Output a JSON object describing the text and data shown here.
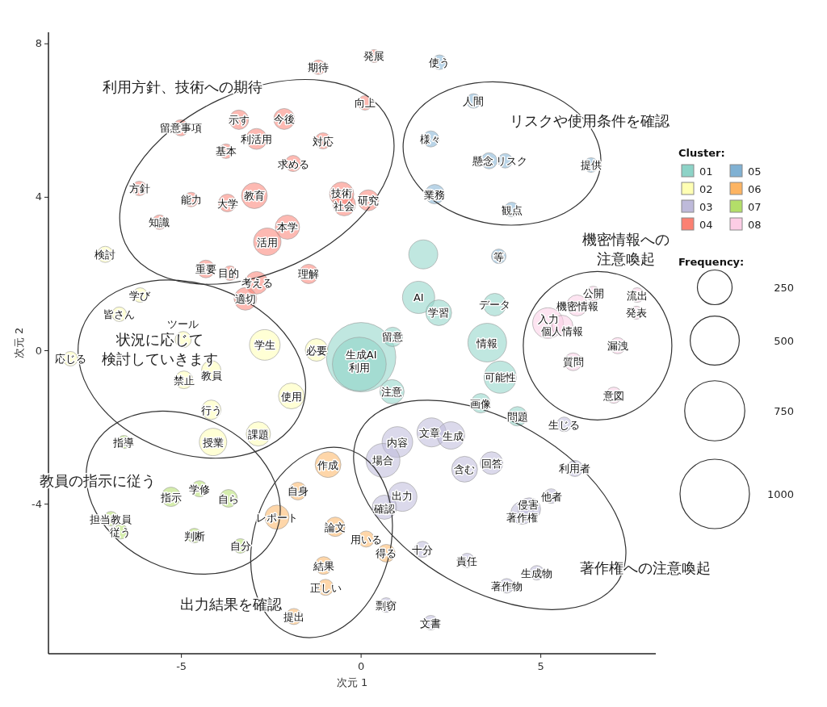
{
  "chart_data": {
    "type": "bubble",
    "xlabel": "次元 1",
    "ylabel": "次元 2",
    "legend_title": "Cluster:",
    "legend": "right",
    "xlim": [
      -8.7,
      8.2
    ],
    "ylim": [
      -7.9,
      8.3
    ],
    "xticks": [
      -5,
      0,
      5
    ],
    "yticks": [
      -4,
      0,
      4,
      8
    ],
    "size_legend": [
      250,
      500,
      750,
      1000
    ],
    "series": [
      {
        "name": "01",
        "color": "#8dd3c7",
        "x": [
          0.0,
          -0.05,
          0.88,
          0.86,
          1.73,
          1.6,
          2.16,
          3.72,
          3.51,
          3.87,
          3.33,
          4.35
        ],
        "values": [
          -0.17,
          -0.35,
          0.36,
          -1.07,
          2.51,
          1.39,
          0.99,
          1.2,
          0.21,
          -0.69,
          -1.37,
          -1.71
        ],
        "sizes": [
          1000,
          600,
          78,
          122,
          175,
          216,
          138,
          106,
          311,
          216,
          78,
          78
        ]
      },
      {
        "name": "02",
        "color": "#ffffb3",
        "x": [
          -7.12,
          -6.15,
          -6.73,
          -8.09,
          -4.95,
          -4.17,
          -4.93,
          -4.17,
          -4.12,
          -2.86,
          -1.94,
          -2.68,
          -1.24
        ],
        "values": [
          2.51,
          1.45,
          0.95,
          -0.21,
          0.29,
          -0.51,
          -0.76,
          -1.54,
          -2.38,
          -2.17,
          -1.18,
          0.15,
          0.02
        ],
        "sizes": [
          54,
          44,
          44,
          44,
          54,
          78,
          65,
          78,
          156,
          122,
          138,
          195,
          106
        ]
      },
      {
        "name": "03",
        "color": "#bebada",
        "x": [
          5.65,
          1.96,
          2.5,
          1.01,
          0.61,
          2.88,
          3.63,
          5.95,
          1.15,
          0.65,
          4.48,
          4.68,
          5.29,
          1.71,
          2.95,
          4.89,
          4.05,
          0.7,
          1.94
        ],
        "values": [
          -1.92,
          -2.13,
          -2.21,
          -2.38,
          -2.86,
          -3.09,
          -2.93,
          -3.07,
          -3.81,
          -4.08,
          -4.23,
          -4.13,
          -3.79,
          -5.18,
          -5.47,
          -5.79,
          -6.13,
          -6.63,
          -7.09
        ],
        "sizes": [
          44,
          175,
          156,
          195,
          238,
          138,
          106,
          54,
          175,
          122,
          106,
          106,
          44,
          54,
          44,
          44,
          44,
          44,
          44
        ]
      },
      {
        "name": "04",
        "color": "#fb8072",
        "x": [
          -1.19,
          0.36,
          0.11,
          -3.4,
          -2.14,
          -2.91,
          -5.02,
          -1.06,
          -3.76,
          -1.89,
          -6.17,
          -4.73,
          -3.72,
          -2.97,
          -0.54,
          -0.47,
          0.2,
          -5.61,
          -2.05,
          -2.61,
          -4.32,
          -3.65,
          -2.91,
          -1.46,
          -3.22
        ],
        "values": [
          7.39,
          7.68,
          6.46,
          6.02,
          6.04,
          5.52,
          5.81,
          5.47,
          5.2,
          4.88,
          4.23,
          3.94,
          3.85,
          4.04,
          4.08,
          3.81,
          3.92,
          3.35,
          3.22,
          2.84,
          2.13,
          2.02,
          1.77,
          2.0,
          1.35
        ],
        "sizes": [
          44,
          35,
          44,
          78,
          91,
          91,
          54,
          54,
          44,
          54,
          44,
          44,
          65,
          138,
          122,
          106,
          91,
          44,
          122,
          156,
          65,
          44,
          106,
          78,
          106
        ]
      },
      {
        "name": "05",
        "color": "#80b1d3",
        "x": [
          2.18,
          3.13,
          1.94,
          3.56,
          4.01,
          6.4,
          2.05,
          4.19,
          3.83
        ],
        "values": [
          7.52,
          6.51,
          5.52,
          4.95,
          4.95,
          4.84,
          4.08,
          3.68,
          2.46
        ],
        "sizes": [
          44,
          44,
          54,
          54,
          44,
          44,
          78,
          44,
          44
        ]
      },
      {
        "name": "06",
        "color": "#fdb462",
        "x": [
          -0.92,
          -1.76,
          -2.34,
          -0.72,
          0.14,
          0.7,
          -1.04,
          -0.99,
          -1.87
        ],
        "values": [
          -2.97,
          -3.66,
          -4.34,
          -4.59,
          -4.91,
          -5.28,
          -5.6,
          -6.17,
          -6.93
        ],
        "sizes": [
          138,
          65,
          122,
          78,
          54,
          65,
          65,
          54,
          54
        ]
      },
      {
        "name": "07",
        "color": "#b3de69",
        "x": [
          -6.6,
          -5.29,
          -4.5,
          -3.69,
          -6.96,
          -6.69,
          -4.64,
          -3.36
        ],
        "values": [
          -2.38,
          -3.81,
          -3.6,
          -3.85,
          -4.38,
          -4.72,
          -4.82,
          -5.09
        ],
        "sizes": [
          35,
          78,
          54,
          65,
          44,
          44,
          44,
          44
        ]
      },
      {
        "name": "08",
        "color": "#fccde5",
        "x": [
          7.68,
          6.46,
          6.01,
          7.66,
          5.2,
          5.6,
          5.9,
          7.14,
          7.03
        ],
        "values": [
          1.45,
          1.49,
          1.18,
          0.99,
          0.72,
          0.65,
          -0.29,
          0.13,
          -1.16
        ],
        "sizes": [
          44,
          44,
          91,
          35,
          195,
          91,
          65,
          54,
          54
        ]
      }
    ],
    "annotations": [
      "利用方針、技術への期待",
      "リスクや使用条件を確認",
      "機密情報への注意喚起",
      "状況に応じて検討していきます",
      "教員の指示に従う",
      "出力結果を確認",
      "著作権への注意喚起",
      "Frequency:",
      {
        "text": "生成AI",
        "x": 0.0,
        "y": -0.17
      },
      {
        "text": "利用",
        "x": -0.05,
        "y": -0.35
      },
      {
        "text": "留意",
        "x": 0.88,
        "y": 0.36
      },
      {
        "text": "注意",
        "x": 0.86,
        "y": -1.07
      },
      {
        "text": "AI",
        "x": 1.6,
        "y": 1.39
      },
      {
        "text": "学習",
        "x": 2.16,
        "y": 0.99
      },
      {
        "text": "データ",
        "x": 3.72,
        "y": 1.2
      },
      {
        "text": "情報",
        "x": 3.51,
        "y": 0.21
      },
      {
        "text": "可能性",
        "x": 3.87,
        "y": -0.69
      },
      {
        "text": "画像",
        "x": 3.33,
        "y": -1.37
      },
      {
        "text": "問題",
        "x": 4.35,
        "y": -1.71
      },
      {
        "text": "検討",
        "x": -7.12,
        "y": 2.51
      },
      {
        "text": "学び",
        "x": -6.15,
        "y": 1.45
      },
      {
        "text": "皆さん",
        "x": -6.73,
        "y": 0.95
      },
      {
        "text": "応じる",
        "x": -8.09,
        "y": -0.21
      },
      {
        "text": "ツール",
        "x": -4.95,
        "y": 0.29
      },
      {
        "text": "教員",
        "x": -4.17,
        "y": -0.51
      },
      {
        "text": "禁止",
        "x": -4.93,
        "y": -0.76
      },
      {
        "text": "行う",
        "x": -4.17,
        "y": -1.54
      },
      {
        "text": "授業",
        "x": -4.12,
        "y": -2.38
      },
      {
        "text": "課題",
        "x": -2.86,
        "y": -2.17
      },
      {
        "text": "使用",
        "x": -1.94,
        "y": -1.18
      },
      {
        "text": "学生",
        "x": -2.68,
        "y": 0.15
      },
      {
        "text": "必要",
        "x": -1.24,
        "y": 0.02
      },
      {
        "text": "生じる",
        "x": 5.65,
        "y": -1.92
      },
      {
        "text": "文章",
        "x": 1.96,
        "y": -2.13
      },
      {
        "text": "生成",
        "x": 2.5,
        "y": -2.21
      },
      {
        "text": "内容",
        "x": 1.01,
        "y": -2.38
      },
      {
        "text": "場合",
        "x": 0.61,
        "y": -2.86
      },
      {
        "text": "含む",
        "x": 2.88,
        "y": -3.09
      },
      {
        "text": "回答",
        "x": 3.63,
        "y": -2.93
      },
      {
        "text": "利用者",
        "x": 5.95,
        "y": -3.07
      },
      {
        "text": "出力",
        "x": 1.15,
        "y": -3.81
      },
      {
        "text": "確認",
        "x": 0.65,
        "y": -4.08
      },
      {
        "text": "著作権",
        "x": 4.48,
        "y": -4.23
      },
      {
        "text": "侵害",
        "x": 4.68,
        "y": -4.13
      },
      {
        "text": "他者",
        "x": 5.29,
        "y": -3.79
      },
      {
        "text": "十分",
        "x": 1.71,
        "y": -5.18
      },
      {
        "text": "責任",
        "x": 2.95,
        "y": -5.47
      },
      {
        "text": "生成物",
        "x": 4.89,
        "y": -5.79
      },
      {
        "text": "著作物",
        "x": 4.05,
        "y": -6.13
      },
      {
        "text": "剽窃",
        "x": 0.7,
        "y": -6.63
      },
      {
        "text": "文書",
        "x": 1.94,
        "y": -7.09
      },
      {
        "text": "期待",
        "x": -1.19,
        "y": 7.39
      },
      {
        "text": "発展",
        "x": 0.36,
        "y": 7.68
      },
      {
        "text": "向上",
        "x": 0.11,
        "y": 6.46
      },
      {
        "text": "示す",
        "x": -3.4,
        "y": 6.02
      },
      {
        "text": "今後",
        "x": -2.14,
        "y": 6.04
      },
      {
        "text": "利活用",
        "x": -2.91,
        "y": 5.52
      },
      {
        "text": "留意事項",
        "x": -5.02,
        "y": 5.81
      },
      {
        "text": "対応",
        "x": -1.06,
        "y": 5.47
      },
      {
        "text": "基本",
        "x": -3.76,
        "y": 5.2
      },
      {
        "text": "求める",
        "x": -1.89,
        "y": 4.88
      },
      {
        "text": "方針",
        "x": -6.17,
        "y": 4.23
      },
      {
        "text": "能力",
        "x": -4.73,
        "y": 3.94
      },
      {
        "text": "大学",
        "x": -3.72,
        "y": 3.85
      },
      {
        "text": "教育",
        "x": -2.97,
        "y": 4.04
      },
      {
        "text": "技術",
        "x": -0.54,
        "y": 4.08
      },
      {
        "text": "社会",
        "x": -0.47,
        "y": 3.81
      },
      {
        "text": "研究",
        "x": 0.2,
        "y": 3.92
      },
      {
        "text": "知識",
        "x": -5.61,
        "y": 3.35
      },
      {
        "text": "本学",
        "x": -2.05,
        "y": 3.22
      },
      {
        "text": "活用",
        "x": -2.61,
        "y": 2.84
      },
      {
        "text": "重要",
        "x": -4.32,
        "y": 2.13
      },
      {
        "text": "目的",
        "x": -3.65,
        "y": 2.02
      },
      {
        "text": "考える",
        "x": -2.91,
        "y": 1.77
      },
      {
        "text": "理解",
        "x": -1.46,
        "y": 2.0
      },
      {
        "text": "適切",
        "x": -3.22,
        "y": 1.35
      },
      {
        "text": "使う",
        "x": 2.18,
        "y": 7.52
      },
      {
        "text": "人間",
        "x": 3.13,
        "y": 6.51
      },
      {
        "text": "様々",
        "x": 1.94,
        "y": 5.52
      },
      {
        "text": "懸念",
        "x": 3.56,
        "y": 4.95
      },
      {
        "text": "リスク",
        "x": 4.01,
        "y": 4.95
      },
      {
        "text": "提供",
        "x": 6.4,
        "y": 4.84
      },
      {
        "text": "業務",
        "x": 2.05,
        "y": 4.08
      },
      {
        "text": "観点",
        "x": 4.19,
        "y": 3.68
      },
      {
        "text": "等",
        "x": 3.83,
        "y": 2.46
      },
      {
        "text": "作成",
        "x": -0.92,
        "y": -2.97
      },
      {
        "text": "自身",
        "x": -1.76,
        "y": -3.66
      },
      {
        "text": "レポート",
        "x": -2.34,
        "y": -4.34
      },
      {
        "text": "論文",
        "x": -0.72,
        "y": -4.59
      },
      {
        "text": "用いる",
        "x": 0.14,
        "y": -4.91
      },
      {
        "text": "得る",
        "x": 0.7,
        "y": -5.28
      },
      {
        "text": "結果",
        "x": -1.04,
        "y": -5.6
      },
      {
        "text": "正しい",
        "x": -0.99,
        "y": -6.17
      },
      {
        "text": "提出",
        "x": -1.87,
        "y": -6.93
      },
      {
        "text": "指導",
        "x": -6.6,
        "y": -2.38
      },
      {
        "text": "指示",
        "x": -5.29,
        "y": -3.81
      },
      {
        "text": "学修",
        "x": -4.5,
        "y": -3.6
      },
      {
        "text": "自ら",
        "x": -3.69,
        "y": -3.85
      },
      {
        "text": "担当教員",
        "x": -6.96,
        "y": -4.38
      },
      {
        "text": "従う",
        "x": -6.69,
        "y": -4.72
      },
      {
        "text": "判断",
        "x": -4.64,
        "y": -4.82
      },
      {
        "text": "自分",
        "x": -3.36,
        "y": -5.09
      },
      {
        "text": "流出",
        "x": 7.68,
        "y": 1.45
      },
      {
        "text": "公開",
        "x": 6.46,
        "y": 1.49
      },
      {
        "text": "機密情報",
        "x": 6.01,
        "y": 1.18
      },
      {
        "text": "発表",
        "x": 7.66,
        "y": 0.99
      },
      {
        "text": "入力",
        "x": 5.2,
        "y": 0.72
      },
      {
        "text": "個人情報",
        "x": 5.6,
        "y": 0.65
      },
      {
        "text": "質問",
        "x": 5.9,
        "y": -0.29
      },
      {
        "text": "漏洩",
        "x": 7.14,
        "y": 0.13
      },
      {
        "text": "意図",
        "x": 7.03,
        "y": -1.16
      }
    ]
  }
}
